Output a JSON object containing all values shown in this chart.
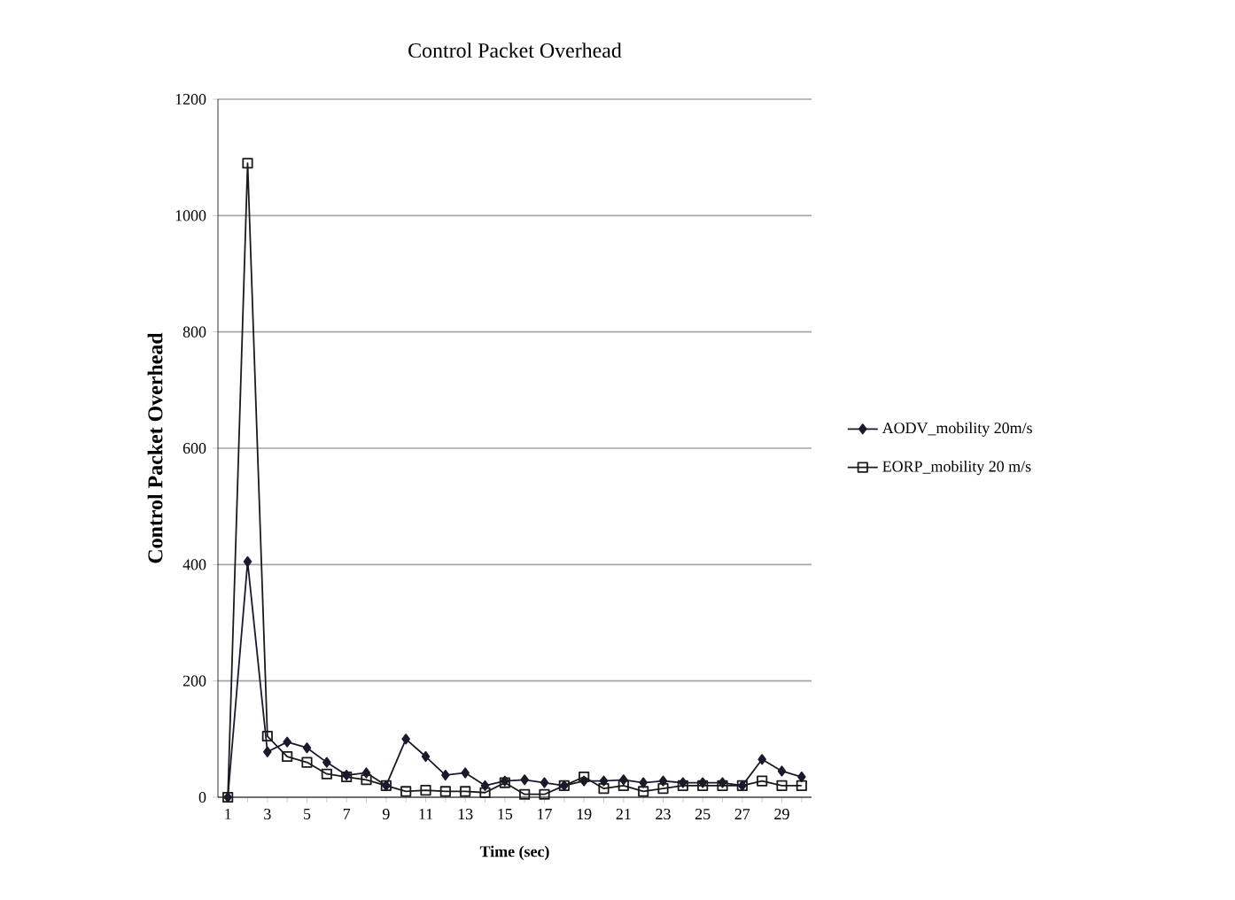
{
  "chart_data": {
    "type": "line",
    "title": "Control Packet Overhead",
    "xlabel": "Time (sec)",
    "ylabel": "Control Packet Overhead",
    "categories": [
      "1",
      null,
      "3",
      null,
      "5",
      null,
      "7",
      null,
      "9",
      null,
      "11",
      null,
      "13",
      null,
      "15",
      null,
      "17",
      null,
      "19",
      null,
      "21",
      null,
      "23",
      null,
      "25",
      null,
      "27",
      null,
      "29",
      null
    ],
    "series": [
      {
        "name": "AODV_mobility 20m/s",
        "color": "#1a1a2e",
        "marker": "diamond",
        "values": [
          0,
          405,
          78,
          95,
          85,
          60,
          38,
          42,
          20,
          100,
          70,
          38,
          42,
          20,
          28,
          30,
          25,
          20,
          28,
          28,
          30,
          25,
          28,
          25,
          25,
          25,
          20,
          65,
          45,
          35
        ]
      },
      {
        "name": "EORP_mobility 20 m/s",
        "color": "#1a1a1a",
        "marker": "square",
        "values": [
          0,
          1090,
          105,
          70,
          60,
          40,
          35,
          30,
          20,
          10,
          12,
          10,
          10,
          8,
          25,
          5,
          5,
          20,
          35,
          15,
          20,
          10,
          15,
          20,
          20,
          20,
          20,
          28,
          20,
          20
        ]
      }
    ],
    "ylim": [
      0,
      1200
    ],
    "yticks": [
      0,
      200,
      400,
      600,
      800,
      1000,
      1200
    ],
    "grid": "y",
    "legend": "right",
    "line_style": "solid"
  }
}
